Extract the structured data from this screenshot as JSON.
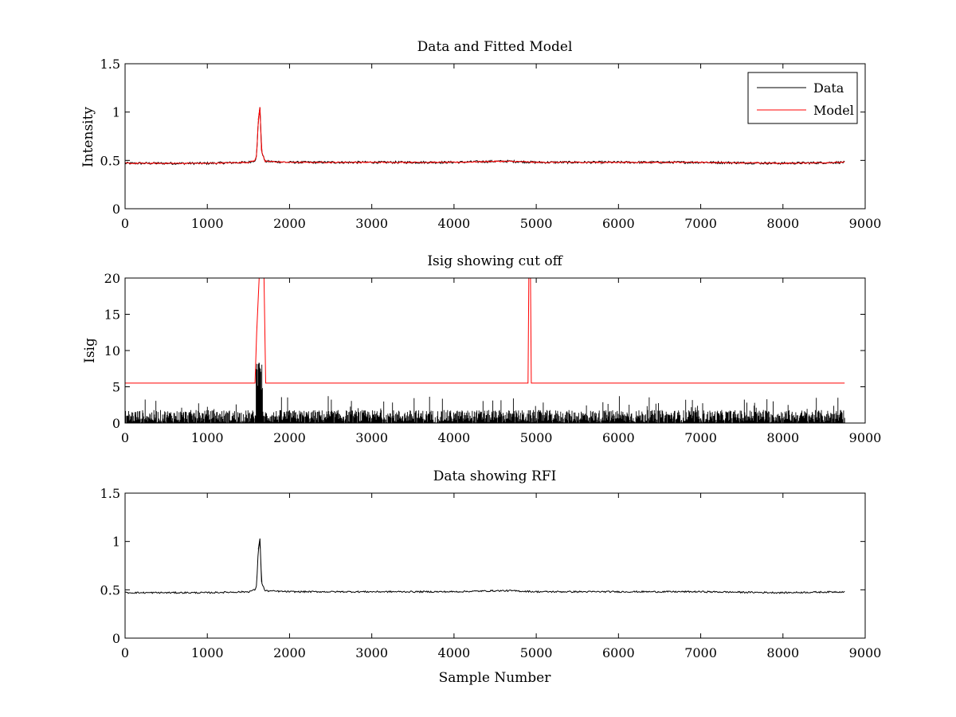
{
  "figure": {
    "background": "#ffffff",
    "colors": {
      "data": "#000000",
      "model": "#ff0000"
    }
  },
  "chart_data": [
    {
      "type": "line",
      "title": "Data and Fitted Model",
      "xlabel": "",
      "ylabel": "Intensity",
      "xlim": [
        0,
        9000
      ],
      "ylim": [
        0,
        1.5
      ],
      "xticks": [
        "0",
        "1000",
        "2000",
        "3000",
        "4000",
        "5000",
        "6000",
        "7000",
        "8000",
        "9000"
      ],
      "yticks": [
        "0",
        "0.5",
        "1",
        "1.5"
      ],
      "grid": false,
      "legend": {
        "position": "top-right",
        "entries": [
          "Data",
          "Model"
        ]
      },
      "series": [
        {
          "name": "Data",
          "color": "#000000",
          "x": [
            0,
            500,
            1000,
            1500,
            1580,
            1600,
            1620,
            1640,
            1660,
            1700,
            2000,
            3000,
            4000,
            4500,
            4700,
            5000,
            6000,
            7000,
            8000,
            8750
          ],
          "y": [
            0.47,
            0.47,
            0.47,
            0.48,
            0.5,
            0.55,
            0.92,
            1.05,
            0.6,
            0.49,
            0.48,
            0.48,
            0.48,
            0.49,
            0.49,
            0.48,
            0.48,
            0.48,
            0.47,
            0.48
          ],
          "noise": 0.012
        },
        {
          "name": "Model",
          "color": "#ff0000",
          "x": [
            0,
            500,
            1000,
            1500,
            1580,
            1600,
            1620,
            1640,
            1660,
            1700,
            2000,
            3000,
            4000,
            4500,
            4700,
            5000,
            6000,
            7000,
            8000,
            8750
          ],
          "y": [
            0.47,
            0.47,
            0.47,
            0.48,
            0.5,
            0.55,
            0.92,
            1.05,
            0.6,
            0.49,
            0.48,
            0.48,
            0.48,
            0.49,
            0.49,
            0.48,
            0.48,
            0.48,
            0.47,
            0.48
          ],
          "noise": 0.006
        }
      ]
    },
    {
      "type": "line",
      "title": "Isig showing cut off",
      "xlabel": "",
      "ylabel": "Isig",
      "xlim": [
        0,
        9000
      ],
      "ylim": [
        0,
        20
      ],
      "xticks": [
        "0",
        "1000",
        "2000",
        "3000",
        "4000",
        "5000",
        "6000",
        "7000",
        "8000",
        "9000"
      ],
      "yticks": [
        "0",
        "5",
        "10",
        "15",
        "20"
      ],
      "grid": false,
      "series": [
        {
          "color": "#000000",
          "kind": "bars",
          "x_start": 0,
          "x_end": 8750,
          "typical_max": 1.8,
          "peak_max": 3.8,
          "spike": {
            "x": 1630,
            "y": 8.3
          }
        },
        {
          "color": "#ff0000",
          "kind": "step",
          "x": [
            0,
            1580,
            1600,
            1630,
            1650,
            1690,
            1710,
            4900,
            4910,
            4930,
            4940,
            8750
          ],
          "y": [
            5.5,
            5.5,
            12.5,
            20,
            20,
            20,
            5.5,
            5.5,
            20,
            20,
            5.5,
            5.5
          ]
        }
      ]
    },
    {
      "type": "line",
      "title": "Data showing RFI",
      "xlabel": "Sample Number",
      "ylabel": "",
      "xlim": [
        0,
        9000
      ],
      "ylim": [
        0,
        1.5
      ],
      "xticks": [
        "0",
        "1000",
        "2000",
        "3000",
        "4000",
        "5000",
        "6000",
        "7000",
        "8000",
        "9000"
      ],
      "yticks": [
        "0",
        "0.5",
        "1",
        "1.5"
      ],
      "grid": false,
      "series": [
        {
          "color": "#000000",
          "x": [
            0,
            500,
            1000,
            1500,
            1580,
            1600,
            1620,
            1640,
            1660,
            1700,
            2000,
            3000,
            4000,
            4500,
            4700,
            5000,
            6000,
            7000,
            8000,
            8750
          ],
          "y": [
            0.47,
            0.47,
            0.47,
            0.48,
            0.5,
            0.55,
            0.92,
            1.03,
            0.58,
            0.49,
            0.48,
            0.48,
            0.48,
            0.49,
            0.49,
            0.48,
            0.48,
            0.48,
            0.47,
            0.48
          ],
          "noise": 0.008
        }
      ]
    }
  ]
}
